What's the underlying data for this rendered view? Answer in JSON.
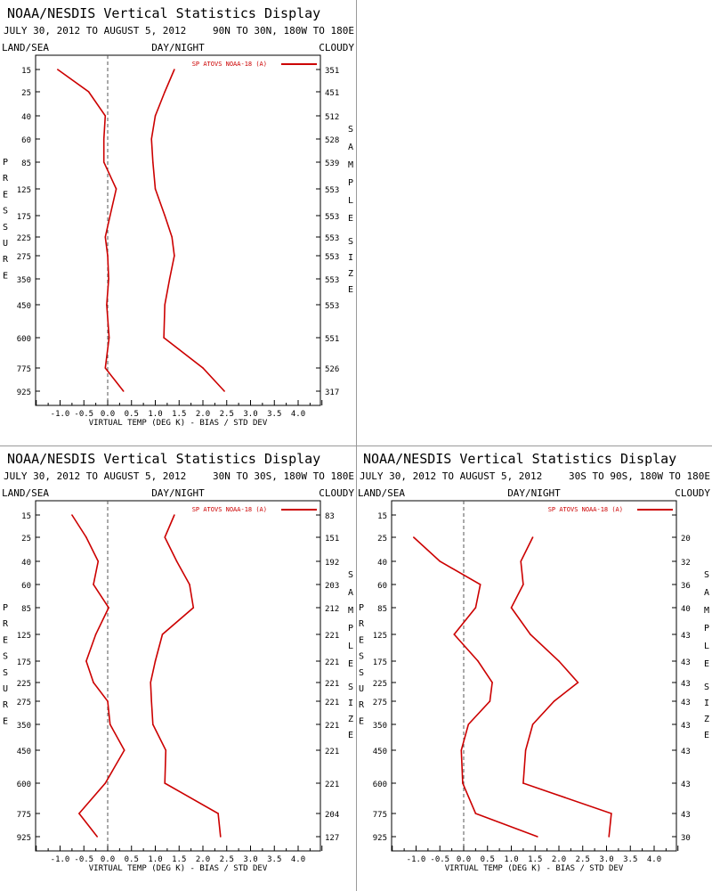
{
  "colors": {
    "line": "#cc0000",
    "frame": "#000000",
    "divider": "#9a9a9a",
    "zero_line": "#555555"
  },
  "title": "NOAA/NESDIS Vertical Statistics Display",
  "header_left": "LAND/SEA",
  "header_center": "DAY/NIGHT",
  "header_right": "CLOUDY",
  "legend_label": "SP ATOVS NOAA-18 (A)",
  "xlabel": "VIRTUAL TEMP (DEG K) - BIAS / STD DEV",
  "ylabel": "PRESSURE",
  "sample_label": "SAMPLE SIZE",
  "pressure_levels": [
    15,
    25,
    40,
    60,
    85,
    125,
    175,
    225,
    275,
    350,
    450,
    600,
    775,
    925
  ],
  "xticks": [
    "-1.0",
    "-0.5",
    "0.0",
    "0.5",
    "1.0",
    "1.5",
    "2.0",
    "2.5",
    "3.0",
    "3.5",
    "4.0"
  ],
  "chart_data": [
    {
      "type": "line",
      "date_range": "JULY 30, 2012 TO AUGUST 5, 2012",
      "region": "90N TO 30N, 180W TO 180E",
      "xlim": [
        -1.5,
        4.5
      ],
      "series": [
        {
          "name": "bias",
          "y": [
            15,
            25,
            40,
            60,
            85,
            125,
            175,
            225,
            275,
            350,
            450,
            600,
            775,
            925
          ],
          "x": [
            -1.05,
            -0.4,
            -0.05,
            -0.08,
            -0.08,
            0.18,
            0.05,
            -0.05,
            0.0,
            0.02,
            -0.02,
            0.03,
            -0.05,
            0.33
          ]
        },
        {
          "name": "std dev",
          "y": [
            15,
            25,
            40,
            60,
            85,
            125,
            175,
            225,
            275,
            350,
            450,
            600,
            775,
            925
          ],
          "x": [
            1.4,
            1.2,
            1.0,
            0.92,
            0.95,
            1.0,
            1.2,
            1.35,
            1.4,
            1.3,
            1.2,
            1.18,
            2.0,
            2.45
          ]
        }
      ],
      "sample_size": [
        "351",
        "451",
        "512",
        "528",
        "539",
        "553",
        "553",
        "553",
        "553",
        "553",
        "553",
        "551",
        "526",
        "317"
      ]
    },
    {
      "type": "line",
      "date_range": "JULY 30, 2012 TO AUGUST 5, 2012",
      "region": "30N TO 30S, 180W TO 180E",
      "xlim": [
        -1.5,
        4.5
      ],
      "series": [
        {
          "name": "bias",
          "y": [
            15,
            25,
            40,
            60,
            85,
            125,
            175,
            225,
            275,
            350,
            450,
            600,
            775,
            925
          ],
          "x": [
            -0.75,
            -0.45,
            -0.2,
            -0.3,
            0.02,
            -0.25,
            -0.45,
            -0.3,
            0.0,
            0.05,
            0.35,
            -0.05,
            -0.6,
            -0.22
          ]
        },
        {
          "name": "std dev",
          "y": [
            15,
            25,
            40,
            60,
            85,
            125,
            175,
            225,
            275,
            350,
            450,
            600,
            775,
            925
          ],
          "x": [
            1.4,
            1.2,
            1.45,
            1.72,
            1.8,
            1.15,
            1.0,
            0.9,
            0.92,
            0.95,
            1.22,
            1.2,
            2.32,
            2.37
          ]
        }
      ],
      "sample_size": [
        "83",
        "151",
        "192",
        "203",
        "212",
        "221",
        "221",
        "221",
        "221",
        "221",
        "221",
        "221",
        "204",
        "127"
      ]
    },
    {
      "type": "line",
      "date_range": "JULY 30, 2012 TO AUGUST 5, 2012",
      "region": "30S TO 90S, 180W TO 180E",
      "xlim": [
        -1.5,
        4.5
      ],
      "series": [
        {
          "name": "bias",
          "y": [
            25,
            40,
            60,
            85,
            125,
            175,
            225,
            275,
            350,
            450,
            600,
            775,
            925
          ],
          "x": [
            -1.05,
            -0.5,
            0.35,
            0.25,
            -0.2,
            0.3,
            0.6,
            0.55,
            0.1,
            -0.05,
            -0.02,
            0.25,
            1.55
          ]
        },
        {
          "name": "std dev",
          "y": [
            25,
            40,
            60,
            85,
            125,
            175,
            225,
            275,
            350,
            450,
            600,
            775,
            925
          ],
          "x": [
            1.45,
            1.2,
            1.25,
            1.0,
            1.4,
            2.0,
            2.4,
            1.9,
            1.45,
            1.3,
            1.25,
            3.1,
            3.05
          ]
        }
      ],
      "sample_size": [
        "",
        "20",
        "32",
        "36",
        "40",
        "43",
        "43",
        "43",
        "43",
        "43",
        "43",
        "43",
        "43",
        "30"
      ]
    }
  ]
}
